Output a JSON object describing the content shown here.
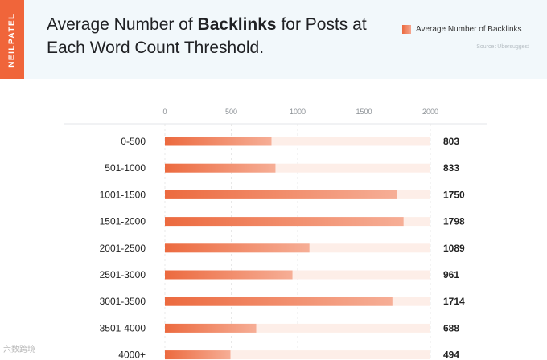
{
  "brand": "NEILPATEL",
  "title_parts": {
    "a": "Average Number of ",
    "b": "Backlinks",
    "c": " for Posts at Each Word Count Threshold."
  },
  "legend_label": "Average Number of Backlinks",
  "source": "Source: Ubersuggest",
  "watermark": "六数跨境",
  "colors": {
    "bar_start": "#ec6a3f",
    "bar_end": "#f6ae96",
    "track": "#fdeee8",
    "brand": "#f0653a",
    "header_bg": "#f2f8fb"
  },
  "chart_data": {
    "type": "bar",
    "orientation": "horizontal",
    "title": "Average Number of Backlinks for Posts at Each Word Count Threshold.",
    "categories": [
      "0-500",
      "501-1000",
      "1001-1500",
      "1501-2000",
      "2001-2500",
      "2501-3000",
      "3001-3500",
      "3501-4000",
      "4000+"
    ],
    "series": [
      {
        "name": "Average Number of Backlinks",
        "values": [
          803,
          833,
          1750,
          1798,
          1089,
          961,
          1714,
          688,
          494
        ]
      }
    ],
    "xlim": [
      0,
      2000
    ],
    "xticks": [
      0,
      500,
      1000,
      1500,
      2000
    ],
    "grid": true,
    "legend_position": "top-right",
    "data_labels": [
      "803",
      "833",
      "1750",
      "1798",
      "1089",
      "961",
      "1714",
      "688",
      "494"
    ]
  }
}
